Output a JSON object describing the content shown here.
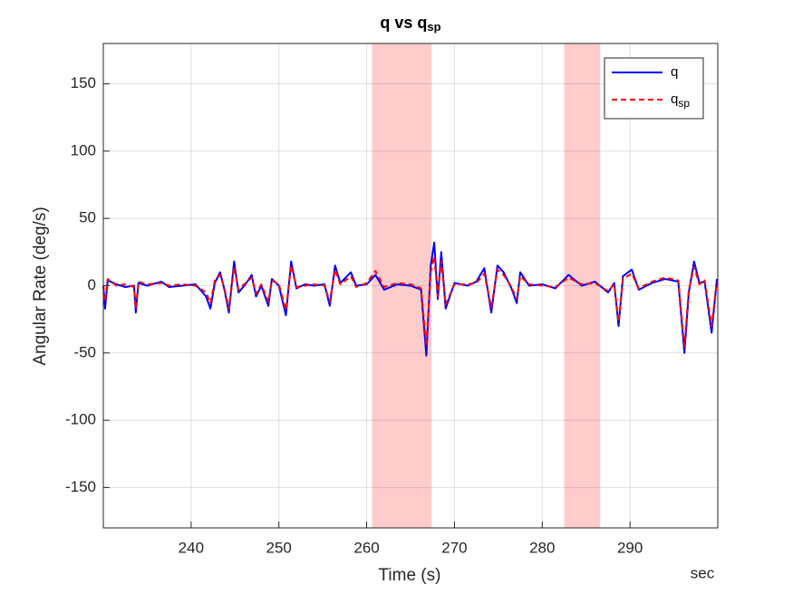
{
  "chart_data": {
    "type": "line",
    "title": {
      "text": "q vs q",
      "subscript": "sp"
    },
    "xlabel": "Time (s)",
    "ylabel": "Angular Rate (deg/s)",
    "x_unit_label": "sec",
    "xlim": [
      230,
      300
    ],
    "ylim": [
      -180,
      180
    ],
    "xticks": [
      240,
      250,
      260,
      270,
      280,
      290
    ],
    "yticks": [
      -150,
      -100,
      -50,
      0,
      50,
      100,
      150
    ],
    "grid": true,
    "legend": "northeast",
    "shaded_regions": [
      [
        260.6,
        267.4
      ],
      [
        282.5,
        286.6
      ]
    ],
    "shade_color": "#ffcccc",
    "x": [
      230,
      230.2,
      230.5,
      231.5,
      232.5,
      233.5,
      233.7,
      234,
      235,
      236.6,
      237.5,
      239,
      240.5,
      241.7,
      242.2,
      242.7,
      243.3,
      243.8,
      244.3,
      244.9,
      245.4,
      246.2,
      246.9,
      247.4,
      248,
      248.8,
      249.2,
      250,
      250.8,
      251.4,
      252,
      253,
      254,
      255.2,
      255.8,
      256.4,
      257,
      258.2,
      258.8,
      260,
      261,
      262,
      263.5,
      265,
      266.2,
      266.8,
      267.3,
      267.7,
      268.1,
      268.5,
      269,
      270,
      271.5,
      272.5,
      273.4,
      274.2,
      274.9,
      275.6,
      276.5,
      277.1,
      277.5,
      278.5,
      280,
      281.5,
      283,
      284.5,
      286,
      287.5,
      288.2,
      288.7,
      289.2,
      290.2,
      291,
      292.5,
      294,
      295.5,
      296.2,
      296.7,
      297.3,
      297.9,
      298.5,
      299.3,
      299.9
    ],
    "series": [
      {
        "name": "q",
        "color": "#0000ff",
        "dash": false,
        "values": [
          0,
          -17,
          4,
          1,
          -1,
          0,
          -20,
          2,
          0,
          3,
          -1,
          0,
          1,
          -8,
          -17,
          2,
          10,
          -3,
          -20,
          18,
          -5,
          1,
          8,
          -8,
          0,
          -15,
          5,
          0,
          -22,
          18,
          -2,
          1,
          0,
          1,
          -15,
          15,
          2,
          10,
          0,
          1,
          8,
          -3,
          1,
          0,
          -3,
          -52,
          15,
          32,
          -10,
          25,
          -17,
          2,
          0,
          3,
          13,
          -20,
          15,
          10,
          -2,
          -13,
          10,
          0,
          1,
          -2,
          8,
          0,
          3,
          -5,
          2,
          -30,
          7,
          12,
          -3,
          2,
          5,
          3,
          -50,
          -5,
          18,
          2,
          3,
          -35,
          5
        ]
      },
      {
        "name": "q",
        "name_subscript": "sp",
        "color": "#ff0000",
        "dash": true,
        "values": [
          0,
          -12,
          5,
          0,
          1,
          -1,
          -17,
          3,
          1,
          2,
          0,
          1,
          0,
          -5,
          -13,
          4,
          8,
          -2,
          -17,
          14,
          -3,
          2,
          6,
          -6,
          1,
          -12,
          4,
          1,
          -18,
          15,
          -1,
          0,
          1,
          0,
          -12,
          12,
          1,
          7,
          -1,
          2,
          11,
          -1,
          2,
          1,
          -2,
          -45,
          10,
          22,
          -8,
          18,
          -14,
          1,
          1,
          2,
          9,
          -16,
          12,
          8,
          -1,
          -10,
          7,
          1,
          0,
          -1,
          6,
          1,
          2,
          -4,
          1,
          -27,
          5,
          9,
          -2,
          3,
          6,
          4,
          -45,
          -3,
          14,
          1,
          4,
          -30,
          3
        ]
      }
    ]
  }
}
